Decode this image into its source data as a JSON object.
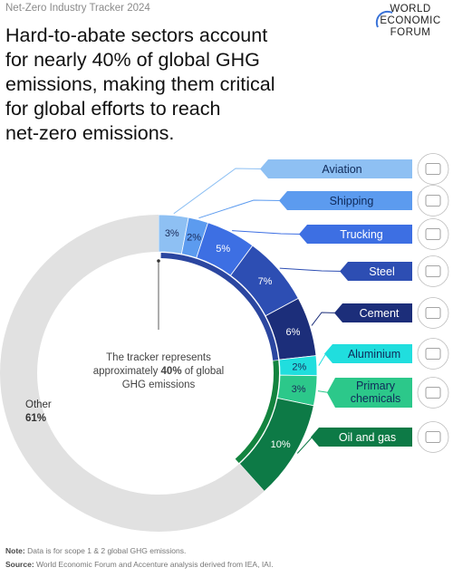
{
  "header": {
    "eyebrow": "Net-Zero Industry Tracker 2024",
    "logo_lines": [
      "WORLD",
      "ECONOMIC",
      "FORUM"
    ],
    "headline_lines": [
      "Hard-to-abate sectors account",
      "for nearly 40% of global GHG",
      "emissions, making them critical",
      "for global efforts to reach",
      "net-zero emissions."
    ]
  },
  "chart_data": {
    "type": "pie",
    "title": "Hard-to-abate sectors account for nearly 40% of global GHG emissions, making them critical for global efforts to reach net-zero emissions.",
    "center_text": {
      "line1": "The tracker represents",
      "line2_pre": "approximately ",
      "line2_bold": "40%",
      "line2_post": " of global",
      "line3": "GHG emissions"
    },
    "slices": [
      {
        "name": "Aviation",
        "value": 3,
        "label": "3%",
        "color": "#8ec0f3",
        "callout": "Aviation"
      },
      {
        "name": "Shipping",
        "value": 2,
        "label": "2%",
        "color": "#5c9bef",
        "callout": "Shipping"
      },
      {
        "name": "Trucking",
        "value": 5,
        "label": "5%",
        "color": "#3d6fe3",
        "callout": "Trucking"
      },
      {
        "name": "Steel",
        "value": 7,
        "label": "7%",
        "color": "#2d4eb3",
        "callout": "Steel"
      },
      {
        "name": "Cement",
        "value": 6,
        "label": "6%",
        "color": "#1c2e7a",
        "callout": "Cement"
      },
      {
        "name": "Aluminium",
        "value": 2,
        "label": "2%",
        "color": "#20dede",
        "callout": "Aluminium"
      },
      {
        "name": "Primary chemicals",
        "value": 3,
        "label": "3%",
        "color": "#2cc88a",
        "callout": "Primary\nchemicals"
      },
      {
        "name": "Oil and gas",
        "value": 10,
        "label": "10%",
        "color": "#0d7a46",
        "callout": "Oil and gas"
      },
      {
        "name": "Other",
        "value": 61,
        "label": "61%",
        "color": "#e1e1e1",
        "callout": ""
      }
    ],
    "inner_ring_colors": {
      "blue": "#2b46a0",
      "green": "#13843f"
    },
    "other_label": "Other",
    "other_value_label": "61%"
  },
  "footer": {
    "note_label": "Note:",
    "note_text": " Data is for scope 1 & 2 global GHG emissions.",
    "source_label": "Source:",
    "source_text": " World Economic Forum and Accenture analysis derived from IEA, IAI."
  }
}
